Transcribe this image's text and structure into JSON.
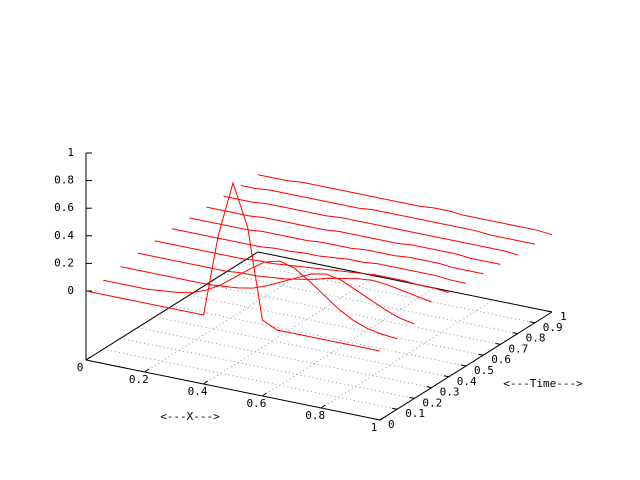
{
  "chart_data": {
    "type": "surface3d",
    "xlabel": "<---X--->",
    "ylabel": "<---Time--->",
    "color": "#ff0000",
    "grid": true,
    "xlim": [
      0,
      1
    ],
    "ylim": [
      0,
      1
    ],
    "zlim": [
      0,
      1
    ],
    "xticks": [
      0,
      0.2,
      0.4,
      0.6,
      0.8,
      1
    ],
    "yticks": [
      0,
      0.1,
      0.2,
      0.3,
      0.4,
      0.5,
      0.6,
      0.7,
      0.8,
      0.9,
      1
    ],
    "zticks": [
      0,
      0.2,
      0.4,
      0.6,
      0.8,
      1
    ],
    "x": [
      0,
      0.05,
      0.1,
      0.15,
      0.2,
      0.25,
      0.3,
      0.35,
      0.4,
      0.45,
      0.5,
      0.55,
      0.6,
      0.65,
      0.7,
      0.75,
      0.8,
      0.85,
      0.9,
      0.95,
      1
    ],
    "series": [
      {
        "y": 0,
        "values": [
          0,
          0,
          0,
          0,
          0,
          0,
          0,
          0,
          0,
          0.6,
          1,
          0.7,
          0.05,
          0,
          0,
          0,
          0,
          0,
          0,
          0,
          0
        ]
      },
      {
        "y": 0.1,
        "values": [
          0,
          0,
          0,
          0,
          0.01,
          0.02,
          0.04,
          0.08,
          0.14,
          0.22,
          0.3,
          0.37,
          0.4,
          0.37,
          0.3,
          0.22,
          0.14,
          0.08,
          0.04,
          0.02,
          0.01
        ]
      },
      {
        "y": 0.2,
        "values": [
          0.02,
          0.02,
          0.02,
          0.02,
          0.02,
          0.02,
          0.02,
          0.03,
          0.04,
          0.06,
          0.1,
          0.15,
          0.2,
          0.25,
          0.27,
          0.25,
          0.2,
          0.15,
          0.1,
          0.06,
          0.04
        ]
      },
      {
        "y": 0.3,
        "values": [
          0.04,
          0.04,
          0.04,
          0.04,
          0.04,
          0.04,
          0.04,
          0.05,
          0.05,
          0.06,
          0.07,
          0.09,
          0.11,
          0.14,
          0.16,
          0.18,
          0.19,
          0.18,
          0.16,
          0.14,
          0.12
        ]
      },
      {
        "y": 0.4,
        "values": [
          0.05,
          0.05,
          0.05,
          0.05,
          0.05,
          0.05,
          0.05,
          0.06,
          0.06,
          0.07,
          0.08,
          0.09,
          0.1,
          0.11,
          0.12,
          0.13,
          0.13,
          0.13,
          0.12,
          0.12,
          0.11
        ]
      },
      {
        "y": 0.5,
        "values": [
          0.06,
          0.06,
          0.06,
          0.06,
          0.06,
          0.06,
          0.06,
          0.07,
          0.07,
          0.08,
          0.08,
          0.09,
          0.1,
          0.1,
          0.11,
          0.11,
          0.11,
          0.11,
          0.11,
          0.1,
          0.1
        ]
      },
      {
        "y": 0.6,
        "values": [
          0.06,
          0.06,
          0.06,
          0.06,
          0.06,
          0.07,
          0.07,
          0.07,
          0.07,
          0.08,
          0.08,
          0.08,
          0.09,
          0.09,
          0.09,
          0.1,
          0.1,
          0.1,
          0.09,
          0.09,
          0.09
        ]
      },
      {
        "y": 0.7,
        "values": [
          0.06,
          0.06,
          0.06,
          0.06,
          0.07,
          0.07,
          0.07,
          0.07,
          0.07,
          0.08,
          0.08,
          0.08,
          0.08,
          0.08,
          0.09,
          0.09,
          0.09,
          0.09,
          0.08,
          0.08,
          0.08
        ]
      },
      {
        "y": 0.8,
        "values": [
          0.06,
          0.06,
          0.06,
          0.07,
          0.07,
          0.07,
          0.07,
          0.07,
          0.08,
          0.08,
          0.08,
          0.08,
          0.08,
          0.08,
          0.08,
          0.08,
          0.08,
          0.08,
          0.08,
          0.08,
          0.07
        ]
      },
      {
        "y": 0.9,
        "values": [
          0.06,
          0.06,
          0.07,
          0.07,
          0.07,
          0.07,
          0.07,
          0.07,
          0.07,
          0.08,
          0.08,
          0.08,
          0.08,
          0.08,
          0.08,
          0.08,
          0.08,
          0.07,
          0.07,
          0.07,
          0.07
        ]
      },
      {
        "y": 1,
        "values": [
          0.06,
          0.06,
          0.06,
          0.07,
          0.07,
          0.07,
          0.07,
          0.07,
          0.07,
          0.07,
          0.07,
          0.07,
          0.08,
          0.08,
          0.07,
          0.07,
          0.07,
          0.07,
          0.07,
          0.07,
          0.06
        ]
      }
    ]
  }
}
